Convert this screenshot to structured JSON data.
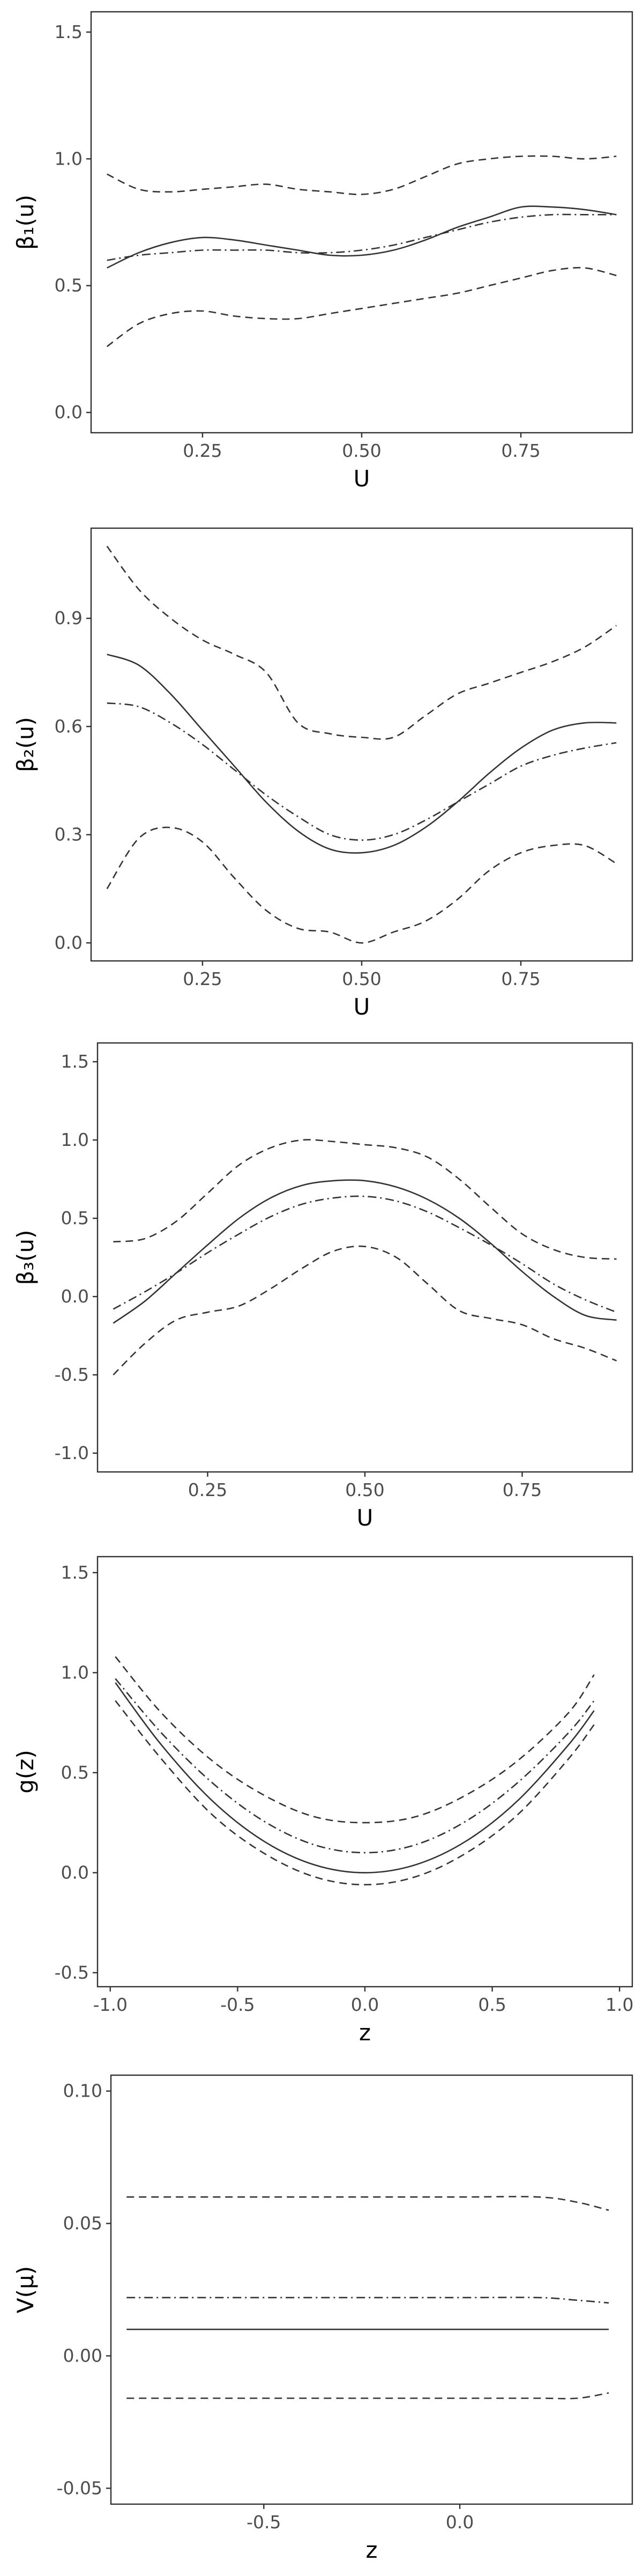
{
  "figure": {
    "background": "#ffffff",
    "line_color": "#333333"
  },
  "chart_data": [
    {
      "type": "line",
      "xlabel": "U",
      "ylabel": "β₁(u)",
      "xlim": [
        0.075,
        0.925
      ],
      "ylim": [
        -0.08,
        1.58
      ],
      "xticks": [
        0.25,
        0.5,
        0.75
      ],
      "xtick_labels": [
        "0.25",
        "0.50",
        "0.75"
      ],
      "yticks": [
        0.0,
        0.5,
        1.0,
        1.5
      ],
      "ytick_labels": [
        "0.0",
        "0.5",
        "1.0",
        "1.5"
      ],
      "grid": false,
      "series": [
        {
          "style": "solid",
          "x": [
            0.1,
            0.15,
            0.2,
            0.25,
            0.3,
            0.35,
            0.4,
            0.45,
            0.5,
            0.55,
            0.6,
            0.65,
            0.7,
            0.75,
            0.8,
            0.85,
            0.9
          ],
          "y": [
            0.57,
            0.63,
            0.67,
            0.69,
            0.68,
            0.66,
            0.64,
            0.62,
            0.62,
            0.64,
            0.68,
            0.73,
            0.77,
            0.81,
            0.81,
            0.8,
            0.78
          ]
        },
        {
          "style": "dotdash",
          "x": [
            0.1,
            0.15,
            0.2,
            0.25,
            0.3,
            0.35,
            0.4,
            0.45,
            0.5,
            0.55,
            0.6,
            0.65,
            0.7,
            0.75,
            0.8,
            0.85,
            0.9
          ],
          "y": [
            0.6,
            0.62,
            0.63,
            0.64,
            0.64,
            0.64,
            0.63,
            0.63,
            0.64,
            0.66,
            0.69,
            0.72,
            0.75,
            0.77,
            0.78,
            0.78,
            0.78
          ]
        },
        {
          "style": "dashed",
          "x": [
            0.1,
            0.15,
            0.2,
            0.25,
            0.3,
            0.35,
            0.4,
            0.45,
            0.5,
            0.55,
            0.6,
            0.65,
            0.7,
            0.75,
            0.8,
            0.85,
            0.9
          ],
          "y": [
            0.94,
            0.88,
            0.87,
            0.88,
            0.89,
            0.9,
            0.88,
            0.87,
            0.86,
            0.88,
            0.93,
            0.98,
            1.0,
            1.01,
            1.01,
            1.0,
            1.01
          ]
        },
        {
          "style": "dashed",
          "x": [
            0.1,
            0.15,
            0.2,
            0.25,
            0.3,
            0.35,
            0.4,
            0.45,
            0.5,
            0.55,
            0.6,
            0.65,
            0.7,
            0.75,
            0.8,
            0.85,
            0.9
          ],
          "y": [
            0.26,
            0.35,
            0.39,
            0.4,
            0.38,
            0.37,
            0.37,
            0.39,
            0.41,
            0.43,
            0.45,
            0.47,
            0.5,
            0.53,
            0.56,
            0.57,
            0.54
          ]
        }
      ]
    },
    {
      "type": "line",
      "xlabel": "U",
      "ylabel": "β₂(u)",
      "xlim": [
        0.075,
        0.925
      ],
      "ylim": [
        -0.05,
        1.15
      ],
      "xticks": [
        0.25,
        0.5,
        0.75
      ],
      "xtick_labels": [
        "0.25",
        "0.50",
        "0.75"
      ],
      "yticks": [
        0.0,
        0.3,
        0.6,
        0.9
      ],
      "ytick_labels": [
        "0.0",
        "0.3",
        "0.6",
        "0.9"
      ],
      "grid": false,
      "series": [
        {
          "style": "solid",
          "x": [
            0.1,
            0.15,
            0.2,
            0.25,
            0.3,
            0.35,
            0.4,
            0.45,
            0.5,
            0.55,
            0.6,
            0.65,
            0.7,
            0.75,
            0.8,
            0.85,
            0.9
          ],
          "y": [
            0.8,
            0.77,
            0.69,
            0.59,
            0.49,
            0.39,
            0.31,
            0.26,
            0.25,
            0.27,
            0.32,
            0.39,
            0.47,
            0.54,
            0.59,
            0.61,
            0.61
          ]
        },
        {
          "style": "dotdash",
          "x": [
            0.1,
            0.15,
            0.2,
            0.25,
            0.3,
            0.35,
            0.4,
            0.45,
            0.5,
            0.55,
            0.6,
            0.65,
            0.7,
            0.75,
            0.8,
            0.85,
            0.9
          ],
          "y": [
            0.665,
            0.655,
            0.61,
            0.55,
            0.48,
            0.41,
            0.35,
            0.3,
            0.285,
            0.3,
            0.34,
            0.39,
            0.44,
            0.49,
            0.52,
            0.54,
            0.555
          ]
        },
        {
          "style": "dashed",
          "x": [
            0.1,
            0.15,
            0.2,
            0.25,
            0.3,
            0.35,
            0.4,
            0.45,
            0.5,
            0.55,
            0.6,
            0.65,
            0.7,
            0.75,
            0.8,
            0.85,
            0.9
          ],
          "y": [
            1.1,
            0.98,
            0.9,
            0.84,
            0.8,
            0.75,
            0.61,
            0.58,
            0.57,
            0.57,
            0.63,
            0.69,
            0.72,
            0.75,
            0.78,
            0.82,
            0.88
          ]
        },
        {
          "style": "dashed",
          "x": [
            0.1,
            0.15,
            0.2,
            0.25,
            0.3,
            0.35,
            0.4,
            0.45,
            0.5,
            0.55,
            0.6,
            0.65,
            0.7,
            0.75,
            0.8,
            0.85,
            0.9
          ],
          "y": [
            0.15,
            0.29,
            0.32,
            0.28,
            0.18,
            0.09,
            0.04,
            0.03,
            0.0,
            0.03,
            0.06,
            0.12,
            0.2,
            0.25,
            0.27,
            0.27,
            0.22
          ]
        }
      ]
    },
    {
      "type": "line",
      "xlabel": "U",
      "ylabel": "β₃(u)",
      "xlim": [
        0.075,
        0.925
      ],
      "ylim": [
        -1.12,
        1.62
      ],
      "xticks": [
        0.25,
        0.5,
        0.75
      ],
      "xtick_labels": [
        "0.25",
        "0.50",
        "0.75"
      ],
      "yticks": [
        -1.0,
        -0.5,
        0.0,
        0.5,
        1.0,
        1.5
      ],
      "ytick_labels": [
        "-1.0",
        "-0.5",
        "0.0",
        "0.5",
        "1.0",
        "1.5"
      ],
      "grid": false,
      "series": [
        {
          "style": "solid",
          "x": [
            0.1,
            0.15,
            0.2,
            0.25,
            0.3,
            0.35,
            0.4,
            0.45,
            0.5,
            0.55,
            0.6,
            0.65,
            0.7,
            0.75,
            0.8,
            0.85,
            0.9
          ],
          "y": [
            -0.17,
            -0.03,
            0.15,
            0.33,
            0.5,
            0.63,
            0.71,
            0.74,
            0.74,
            0.7,
            0.62,
            0.5,
            0.34,
            0.16,
            0.0,
            -0.12,
            -0.15
          ]
        },
        {
          "style": "dotdash",
          "x": [
            0.1,
            0.15,
            0.2,
            0.25,
            0.3,
            0.35,
            0.4,
            0.45,
            0.5,
            0.55,
            0.6,
            0.65,
            0.7,
            0.75,
            0.8,
            0.85,
            0.9
          ],
          "y": [
            -0.08,
            0.03,
            0.15,
            0.28,
            0.4,
            0.51,
            0.59,
            0.63,
            0.64,
            0.61,
            0.54,
            0.44,
            0.33,
            0.21,
            0.08,
            -0.02,
            -0.1
          ]
        },
        {
          "style": "dashed",
          "x": [
            0.1,
            0.15,
            0.2,
            0.25,
            0.3,
            0.35,
            0.4,
            0.45,
            0.5,
            0.55,
            0.6,
            0.65,
            0.7,
            0.75,
            0.8,
            0.85,
            0.9
          ],
          "y": [
            0.35,
            0.37,
            0.48,
            0.66,
            0.84,
            0.95,
            1.0,
            0.99,
            0.97,
            0.95,
            0.89,
            0.75,
            0.57,
            0.4,
            0.3,
            0.25,
            0.24
          ]
        },
        {
          "style": "dashed",
          "x": [
            0.1,
            0.15,
            0.2,
            0.25,
            0.3,
            0.35,
            0.4,
            0.45,
            0.5,
            0.55,
            0.6,
            0.65,
            0.7,
            0.75,
            0.8,
            0.85,
            0.9
          ],
          "y": [
            -0.5,
            -0.3,
            -0.15,
            -0.1,
            -0.06,
            0.05,
            0.18,
            0.29,
            0.32,
            0.25,
            0.08,
            -0.09,
            -0.14,
            -0.18,
            -0.27,
            -0.33,
            -0.41
          ]
        }
      ]
    },
    {
      "type": "line",
      "xlabel": "z",
      "ylabel": "g(z)",
      "xlim": [
        -1.05,
        1.05
      ],
      "ylim": [
        -0.57,
        1.58
      ],
      "xticks": [
        -1.0,
        -0.5,
        0.0,
        0.5,
        1.0
      ],
      "xtick_labels": [
        "-1.0",
        "-0.5",
        "0.0",
        "0.5",
        "1.0"
      ],
      "yticks": [
        -0.5,
        0.0,
        0.5,
        1.0,
        1.5
      ],
      "ytick_labels": [
        "-0.5",
        "0.0",
        "0.5",
        "1.0",
        "1.5"
      ],
      "grid": false,
      "series": [
        {
          "style": "solid",
          "x": [
            -0.98,
            -0.8,
            -0.6,
            -0.4,
            -0.2,
            0.0,
            0.2,
            0.4,
            0.6,
            0.8,
            0.9
          ],
          "y": [
            0.95,
            0.64,
            0.36,
            0.16,
            0.04,
            0.0,
            0.04,
            0.16,
            0.36,
            0.64,
            0.81
          ]
        },
        {
          "style": "dotdash",
          "x": [
            -0.98,
            -0.8,
            -0.6,
            -0.4,
            -0.2,
            0.0,
            0.2,
            0.4,
            0.6,
            0.8,
            0.9
          ],
          "y": [
            0.97,
            0.7,
            0.45,
            0.26,
            0.14,
            0.1,
            0.14,
            0.26,
            0.45,
            0.7,
            0.86
          ]
        },
        {
          "style": "dashed",
          "x": [
            -0.98,
            -0.8,
            -0.6,
            -0.4,
            -0.2,
            0.0,
            0.2,
            0.4,
            0.6,
            0.8,
            0.9
          ],
          "y": [
            1.08,
            0.8,
            0.56,
            0.39,
            0.28,
            0.25,
            0.28,
            0.39,
            0.56,
            0.8,
            0.99
          ]
        },
        {
          "style": "dashed",
          "x": [
            -0.98,
            -0.8,
            -0.6,
            -0.4,
            -0.2,
            0.0,
            0.2,
            0.4,
            0.6,
            0.8,
            0.9
          ],
          "y": [
            0.86,
            0.57,
            0.29,
            0.1,
            -0.02,
            -0.06,
            -0.02,
            0.1,
            0.29,
            0.57,
            0.74
          ]
        }
      ]
    },
    {
      "type": "line",
      "xlabel": "z",
      "ylabel": "V(μ)",
      "xlim": [
        -0.89,
        0.44
      ],
      "ylim": [
        -0.056,
        0.106
      ],
      "xticks": [
        -0.5,
        0.0
      ],
      "xtick_labels": [
        "-0.5",
        "0.0"
      ],
      "yticks": [
        -0.05,
        0.0,
        0.05,
        0.1
      ],
      "ytick_labels": [
        "-0.05",
        "0.00",
        "0.05",
        "0.10"
      ],
      "grid": false,
      "series": [
        {
          "style": "solid",
          "x": [
            -0.85,
            0.38
          ],
          "y": [
            0.01,
            0.01
          ]
        },
        {
          "style": "dotdash",
          "x": [
            -0.85,
            -0.6,
            -0.3,
            0.0,
            0.2,
            0.3,
            0.38
          ],
          "y": [
            0.022,
            0.022,
            0.022,
            0.022,
            0.022,
            0.021,
            0.02
          ]
        },
        {
          "style": "dashed",
          "x": [
            -0.85,
            -0.6,
            -0.3,
            0.0,
            0.2,
            0.3,
            0.38
          ],
          "y": [
            0.06,
            0.06,
            0.06,
            0.06,
            0.06,
            0.058,
            0.055
          ]
        },
        {
          "style": "dashed",
          "x": [
            -0.85,
            -0.6,
            -0.3,
            0.0,
            0.2,
            0.3,
            0.38
          ],
          "y": [
            -0.016,
            -0.016,
            -0.016,
            -0.016,
            -0.016,
            -0.016,
            -0.014
          ]
        }
      ]
    }
  ]
}
